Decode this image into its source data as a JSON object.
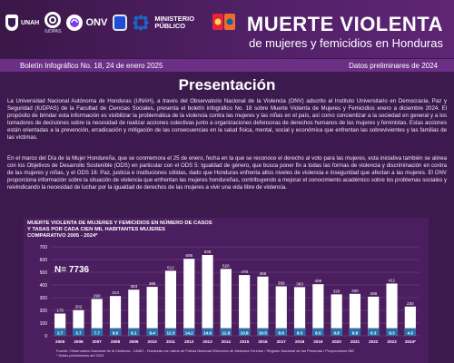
{
  "header": {
    "logos": {
      "unah": "UNAH",
      "iudpas": "IUDPAS",
      "onv": "ONV",
      "mp_line1": "MINISTERIO",
      "mp_line2": "PÚBLICO"
    },
    "title": "MUERTE VIOLENTA",
    "subtitle": "de mujeres y femicidios en Honduras"
  },
  "info_bar": {
    "bulletin": "Boletín Infográfico No. 18, 24 de enero 2025",
    "status": "Datos preliminares de 2024"
  },
  "presentation": {
    "heading": "Presentación",
    "paragraph1": "La Universidad Nacional Autónoma de Honduras (UNAH), a través del Observatorio Nacional de la Violencia (ONV) adscrito al Instituto Universitario en Democracia, Paz y Seguridad (IUDPAS) de la Facultad de Ciencias Sociales, presenta el boletín infográfico No. 18 sobre Muerte Violenta de Mujeres y Femicidios enero a diciembre 2024. El propósito de brindar esta información es visibilizar la problemática de la violencia contra las mujeres y las niñas en el país, así como concientizar a la sociedad en general y a los tomadores de decisiones sobre la necesidad de realizar acciones colectivas junto a organizaciones defensoras de derechos humanos de las mujeres y feministas. Estas acciones están orientadas a la prevención, erradicación y mitigación de las consecuencias en la salud física, mental, social y económica que enfrentan las sobrevivientes y las familias de las víctimas.",
    "paragraph2": "En el marco del Día de la Mujer Hondureña, que se conmemora el 25 de enero, fecha en la que se reconoce el derecho al voto para las mujeres, esta iniciativa también se alinea con los Objetivos de Desarrollo Sostenible (ODS) en particular con el ODS 5: Igualdad de género, que busca poner fin a todas las formas de violencia y discriminación en contra de las mujeres y niñas, y el ODS 16: Paz, justicia e instituciones sólidas, dado que Honduras enfrenta altos niveles de violencia e inseguridad que afectan a las mujeres. El ONV proporciona información sobre la situación de violencia que enfrentan las mujeres hondureñas, contribuyendo a mejorar el conocimiento académico sobre los problemas sociales y reivindicando la necesidad de luchar por la igualdad de derechos de las mujeres a vivir una vida libre de violencia."
  },
  "chart_data": {
    "type": "bar",
    "title_lines": [
      "MUERTE VIOLENTA DE MUJERES Y FEMICIDIOS EN NÚMERO DE CASOS",
      "Y TASAS POR CADA CIEN MIL HABITANTES MUJERES",
      "COMPARATIVO 2005 - 2024*"
    ],
    "total_label": "N= 7736",
    "categories": [
      "2005",
      "2006",
      "2007",
      "2008",
      "2009",
      "2010",
      "2011",
      "2012",
      "2013",
      "2014",
      "2015",
      "2016",
      "2017",
      "2018",
      "2019",
      "2020",
      "2021",
      "2022",
      "2023",
      "2024*"
    ],
    "series": [
      {
        "name": "Casos",
        "values": [
          175,
          202,
          290,
          313,
          363,
          385,
          512,
          606,
          636,
          526,
          478,
          466,
          389,
          383,
          406,
          326,
          330,
          308,
          411,
          230
        ]
      },
      {
        "name": "Tasa",
        "values": [
          2.7,
          3.7,
          7.7,
          8.0,
          9.1,
          9.4,
          12.3,
          14.2,
          14.6,
          11.8,
          10.8,
          10.5,
          8.6,
          8.3,
          8.5,
          6.8,
          6.8,
          6.3,
          8.3,
          4.5
        ]
      }
    ],
    "yticks": [
      0,
      100,
      200,
      300,
      400,
      500,
      600,
      700
    ],
    "ylim": [
      0,
      700
    ],
    "grid": true,
    "colors": {
      "bar": "#ffffff",
      "rate_band": "#2c6fa8",
      "axis_text": "#ffffff"
    },
    "source_note_lines": [
      "Fuente: Observatorio Nacional de la Violencia - UNAH - Honduras con datos de Policía Nacional /Dirección de Medicina Forense / Registro Nacional de las Personas / Proyecciones INE",
      "* Datos preliminares del 2024"
    ]
  }
}
